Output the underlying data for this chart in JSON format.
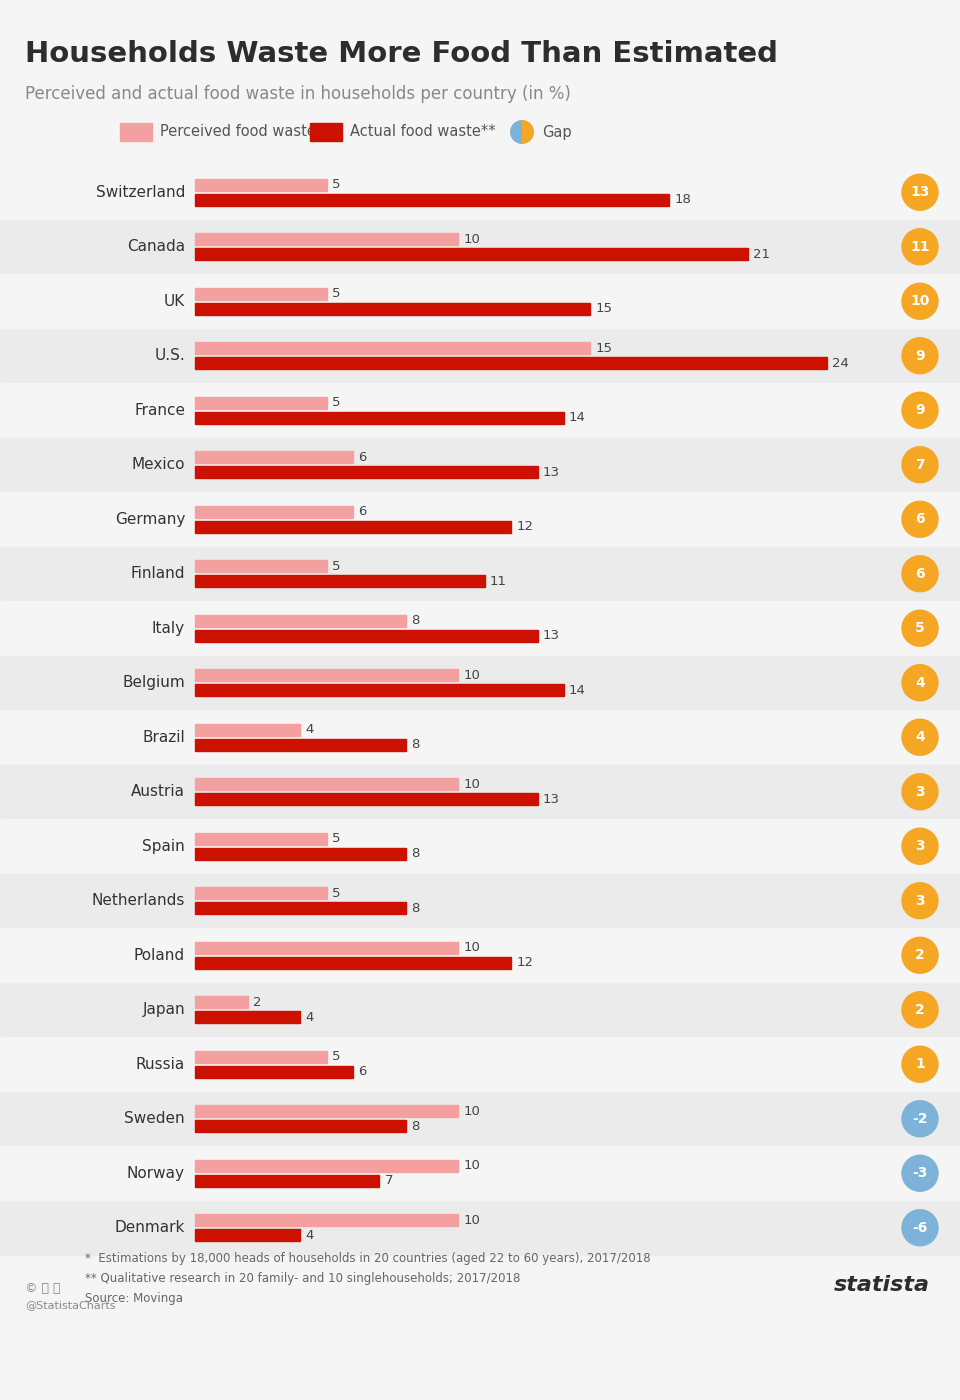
{
  "title": "Households Waste More Food Than Estimated",
  "subtitle": "Perceived and actual food waste in households per country (in %)",
  "countries": [
    "Switzerland",
    "Canada",
    "UK",
    "U.S.",
    "France",
    "Mexico",
    "Germany",
    "Finland",
    "Italy",
    "Belgium",
    "Brazil",
    "Austria",
    "Spain",
    "Netherlands",
    "Poland",
    "Japan",
    "Russia",
    "Sweden",
    "Norway",
    "Denmark"
  ],
  "perceived": [
    5,
    10,
    5,
    15,
    5,
    6,
    6,
    5,
    8,
    10,
    4,
    10,
    5,
    5,
    10,
    2,
    5,
    10,
    10,
    10
  ],
  "actual": [
    18,
    21,
    15,
    24,
    14,
    13,
    12,
    11,
    13,
    14,
    8,
    13,
    8,
    8,
    12,
    4,
    6,
    8,
    7,
    4
  ],
  "gap": [
    13,
    11,
    10,
    9,
    9,
    7,
    6,
    6,
    5,
    4,
    4,
    3,
    3,
    3,
    2,
    2,
    1,
    -2,
    -3,
    -6
  ],
  "perceived_color": "#f4a0a0",
  "actual_color": "#cc1100",
  "gap_positive_color": "#f5a623",
  "gap_negative_color": "#7db3d8",
  "bg_color": "#f5f5f5",
  "row_bg_alt": "#ebebeb",
  "footnote1": "*  Estimations by 18,000 heads of households in 20 countries (aged 22 to 60 years), 2017/2018",
  "footnote2": "** Qualitative research in 20 family- and 10 singlehouseholds; 2017/2018",
  "source": "Source: Movinga"
}
